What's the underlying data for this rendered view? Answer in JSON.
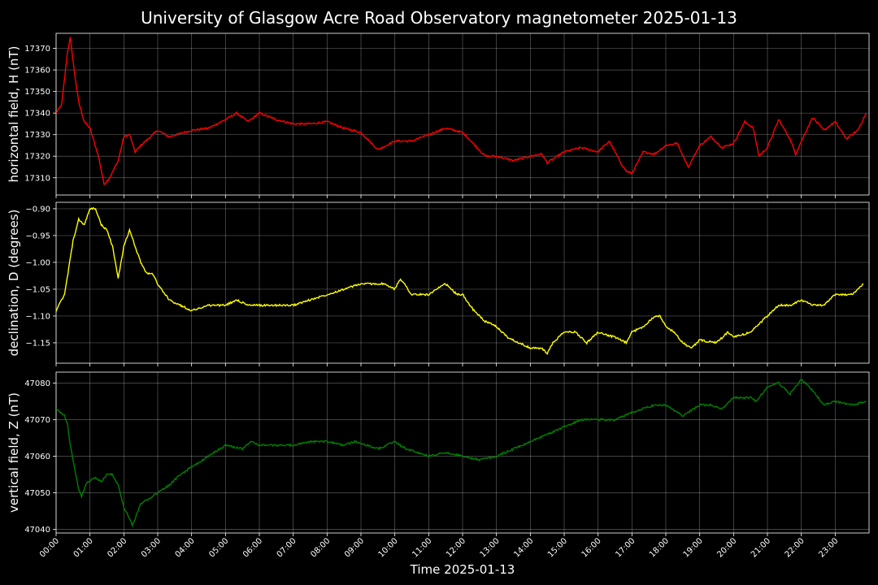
{
  "chart_data": {
    "type": "line",
    "title": "University of Glasgow Acre Road Observatory magnetometer 2025-01-13",
    "xlabel": "Time 2025-01-13",
    "x_ticks": [
      "00:00",
      "01:00",
      "02:00",
      "03:00",
      "04:00",
      "05:00",
      "06:00",
      "07:00",
      "08:00",
      "09:00",
      "10:00",
      "11:00",
      "12:00",
      "13:00",
      "14:00",
      "15:00",
      "16:00",
      "17:00",
      "18:00",
      "19:00",
      "20:00",
      "21:00",
      "22:00",
      "23:00"
    ],
    "xlim": [
      "00:00",
      "24:00"
    ],
    "grid": true,
    "panels": [
      {
        "ylabel": "horizontal field, H (nT)",
        "color": "#ff0000",
        "ylim": [
          17302,
          17377
        ],
        "y_ticks": [
          17310,
          17320,
          17330,
          17340,
          17350,
          17360,
          17370
        ],
        "tick_decimals": 0,
        "series": [
          {
            "x": [
              "00:00",
              "00:10",
              "00:20",
              "00:25",
              "00:32",
              "00:40",
              "00:50",
              "01:00",
              "01:15",
              "01:25",
              "01:35",
              "01:50",
              "02:00",
              "02:10",
              "02:20",
              "02:30",
              "03:00",
              "03:20",
              "04:00",
              "04:30",
              "05:00",
              "05:20",
              "05:40",
              "06:00",
              "06:30",
              "07:00",
              "07:30",
              "08:00",
              "08:30",
              "09:00",
              "09:30",
              "10:00",
              "10:30",
              "11:00",
              "11:30",
              "12:00",
              "12:15",
              "12:40",
              "13:00",
              "13:30",
              "14:00",
              "14:20",
              "14:30",
              "15:00",
              "15:30",
              "16:00",
              "16:20",
              "16:40",
              "16:50",
              "17:00",
              "17:20",
              "17:40",
              "18:00",
              "18:20",
              "18:40",
              "19:00",
              "19:20",
              "19:40",
              "20:00",
              "20:20",
              "20:35",
              "20:45",
              "21:00",
              "21:20",
              "21:40",
              "21:50",
              "22:00",
              "22:20",
              "22:40",
              "23:00",
              "23:20",
              "23:40",
              "23:55"
            ],
            "y": [
              17340,
              17344,
              17368,
              17375,
              17360,
              17345,
              17336,
              17333,
              17320,
              17307,
              17310,
              17318,
              17329,
              17330,
              17322,
              17325,
              17332,
              17329,
              17332,
              17333,
              17337,
              17340,
              17336,
              17340,
              17337,
              17335,
              17335,
              17336,
              17333,
              17331,
              17323,
              17327,
              17327,
              17330,
              17333,
              17331,
              17327,
              17320,
              17320,
              17318,
              17320,
              17321,
              17317,
              17322,
              17324,
              17322,
              17327,
              17317,
              17313,
              17312,
              17322,
              17321,
              17325,
              17326,
              17315,
              17325,
              17329,
              17324,
              17326,
              17336,
              17333,
              17320,
              17324,
              17337,
              17328,
              17321,
              17327,
              17338,
              17332,
              17336,
              17328,
              17332,
              17340
            ]
          }
        ]
      },
      {
        "ylabel": "declination, D (degrees)",
        "color": "#ffff00",
        "ylim": [
          -1.188,
          -0.888
        ],
        "y_ticks": [
          -0.9,
          -0.95,
          -1.0,
          -1.05,
          -1.1,
          -1.15
        ],
        "tick_decimals": 2,
        "series": [
          {
            "x": [
              "00:00",
              "00:15",
              "00:30",
              "00:40",
              "00:50",
              "01:00",
              "01:10",
              "01:20",
              "01:30",
              "01:40",
              "01:50",
              "02:00",
              "02:10",
              "02:20",
              "02:30",
              "02:40",
              "02:50",
              "03:00",
              "03:20",
              "03:40",
              "04:00",
              "04:30",
              "05:00",
              "05:20",
              "05:40",
              "06:00",
              "06:30",
              "07:00",
              "07:30",
              "08:00",
              "08:30",
              "09:00",
              "09:20",
              "09:40",
              "10:00",
              "10:10",
              "10:30",
              "11:00",
              "11:30",
              "11:50",
              "12:00",
              "12:20",
              "12:40",
              "13:00",
              "13:20",
              "13:40",
              "14:00",
              "14:20",
              "14:30",
              "14:40",
              "15:00",
              "15:20",
              "15:40",
              "16:00",
              "16:30",
              "16:50",
              "17:00",
              "17:20",
              "17:40",
              "17:50",
              "18:00",
              "18:15",
              "18:30",
              "18:45",
              "19:00",
              "19:30",
              "19:50",
              "20:00",
              "20:30",
              "20:50",
              "21:00",
              "21:20",
              "21:40",
              "22:00",
              "22:20",
              "22:40",
              "23:00",
              "23:30",
              "23:50"
            ],
            "y": [
              -1.09,
              -1.06,
              -0.96,
              -0.92,
              -0.93,
              -0.9,
              -0.9,
              -0.93,
              -0.94,
              -0.97,
              -1.03,
              -0.97,
              -0.94,
              -0.97,
              -1.0,
              -1.02,
              -1.02,
              -1.04,
              -1.07,
              -1.08,
              -1.09,
              -1.08,
              -1.08,
              -1.07,
              -1.08,
              -1.08,
              -1.08,
              -1.08,
              -1.07,
              -1.06,
              -1.05,
              -1.04,
              -1.04,
              -1.04,
              -1.05,
              -1.03,
              -1.06,
              -1.06,
              -1.04,
              -1.06,
              -1.06,
              -1.09,
              -1.11,
              -1.12,
              -1.14,
              -1.15,
              -1.16,
              -1.16,
              -1.17,
              -1.15,
              -1.13,
              -1.13,
              -1.15,
              -1.13,
              -1.14,
              -1.15,
              -1.13,
              -1.12,
              -1.1,
              -1.1,
              -1.12,
              -1.13,
              -1.15,
              -1.16,
              -1.145,
              -1.15,
              -1.13,
              -1.14,
              -1.13,
              -1.11,
              -1.1,
              -1.08,
              -1.08,
              -1.07,
              -1.08,
              -1.08,
              -1.06,
              -1.06,
              -1.04
            ]
          }
        ]
      },
      {
        "ylabel": "vertical field, Z (nT)",
        "color": "#008000",
        "ylim": [
          47039,
          47083
        ],
        "y_ticks": [
          47040,
          47050,
          47060,
          47070,
          47080
        ],
        "tick_decimals": 0,
        "series": [
          {
            "x": [
              "00:00",
              "00:15",
              "00:20",
              "00:25",
              "00:40",
              "00:45",
              "00:55",
              "01:10",
              "01:20",
              "01:30",
              "01:40",
              "01:50",
              "02:00",
              "02:10",
              "02:15",
              "02:20",
              "02:30",
              "02:40",
              "03:00",
              "03:20",
              "03:40",
              "04:00",
              "04:30",
              "05:00",
              "05:30",
              "05:45",
              "06:00",
              "07:00",
              "07:30",
              "08:00",
              "08:30",
              "08:50",
              "09:30",
              "10:00",
              "10:20",
              "10:40",
              "11:00",
              "11:30",
              "12:00",
              "12:30",
              "13:00",
              "13:30",
              "14:00",
              "14:30",
              "15:00",
              "15:30",
              "16:00",
              "16:30",
              "17:00",
              "17:20",
              "17:40",
              "18:00",
              "18:30",
              "19:00",
              "19:20",
              "19:40",
              "20:00",
              "20:30",
              "20:40",
              "21:00",
              "21:20",
              "21:40",
              "22:00",
              "22:20",
              "22:40",
              "23:00",
              "23:30",
              "23:55"
            ],
            "y": [
              47073,
              47071,
              47069,
              47063,
              47051,
              47049,
              47053,
              47054,
              47053,
              47055,
              47055,
              47052,
              47046,
              47043,
              47041,
              47043,
              47047,
              47048,
              47050,
              47052,
              47055,
              47057,
              47060,
              47063,
              47062,
              47064,
              47063,
              47063,
              47064,
              47064,
              47063,
              47064,
              47062,
              47064,
              47062,
              47061,
              47060,
              47061,
              47060,
              47059,
              47060,
              47062,
              47064,
              47066,
              47068,
              47070,
              47070,
              47070,
              47072,
              47073,
              47074,
              47074,
              47071,
              47074,
              47074,
              47073,
              47076,
              47076,
              47075,
              47079,
              47080,
              47077,
              47081,
              47078,
              47074,
              47075,
              47074,
              47075
            ]
          }
        ]
      }
    ]
  }
}
